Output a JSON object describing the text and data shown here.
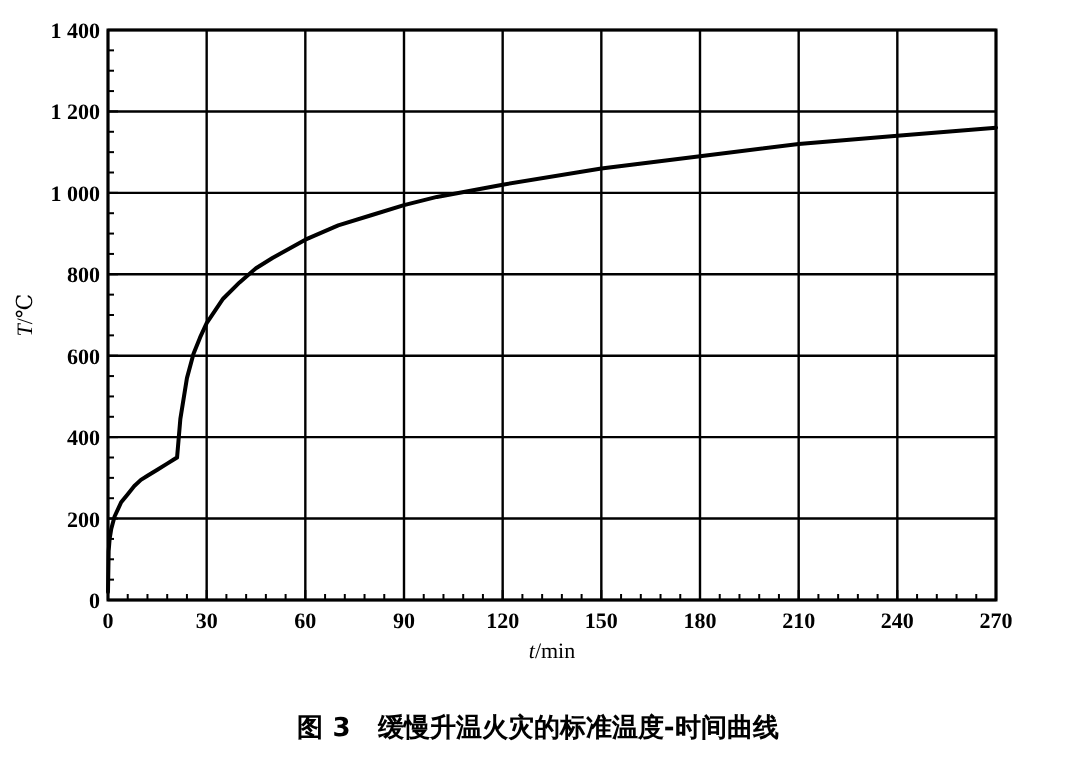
{
  "chart_data": {
    "type": "line",
    "title": "图 3   缓慢升温火灾的标准温度-时间曲线",
    "xlabel": "t/min",
    "ylabel": "T/℃",
    "xlim": [
      0,
      270
    ],
    "ylim": [
      0,
      1400
    ],
    "xticks": [
      0,
      {
        "value": 6,
        "label": null
      },
      {
        "value": 12,
        "label": null
      },
      {
        "value": 18,
        "label": null
      },
      {
        "value": 24,
        "label": null
      },
      30,
      {
        "value": 36,
        "label": null
      },
      {
        "value": 42,
        "label": null
      },
      {
        "value": 48,
        "label": null
      },
      {
        "value": 54,
        "label": null
      },
      60,
      {
        "value": 66,
        "label": null
      },
      {
        "value": 72,
        "label": null
      },
      {
        "value": 78,
        "label": null
      },
      {
        "value": 84,
        "label": null
      },
      90,
      {
        "value": 96,
        "label": null
      },
      {
        "value": 102,
        "label": null
      },
      {
        "value": 108,
        "label": null
      },
      {
        "value": 114,
        "label": null
      },
      120,
      {
        "value": 126,
        "label": null
      },
      {
        "value": 132,
        "label": null
      },
      {
        "value": 138,
        "label": null
      },
      {
        "value": 144,
        "label": null
      },
      150,
      {
        "value": 156,
        "label": null
      },
      {
        "value": 162,
        "label": null
      },
      {
        "value": 168,
        "label": null
      },
      {
        "value": 174,
        "label": null
      },
      180,
      {
        "value": 186,
        "label": null
      },
      {
        "value": 192,
        "label": null
      },
      {
        "value": 198,
        "label": null
      },
      {
        "value": 204,
        "label": null
      },
      210,
      {
        "value": 216,
        "label": null
      },
      {
        "value": 222,
        "label": null
      },
      {
        "value": 228,
        "label": null
      },
      {
        "value": 234,
        "label": null
      },
      240,
      {
        "value": 246,
        "label": null
      },
      {
        "value": 252,
        "label": null
      },
      {
        "value": 258,
        "label": null
      },
      {
        "value": 264,
        "label": null
      },
      270
    ],
    "yticks": [
      0,
      {
        "value": 50,
        "label": null
      },
      {
        "value": 100,
        "label": null
      },
      {
        "value": 150,
        "label": null
      },
      200,
      {
        "value": 250,
        "label": null
      },
      {
        "value": 300,
        "label": null
      },
      {
        "value": 350,
        "label": null
      },
      400,
      {
        "value": 450,
        "label": null
      },
      {
        "value": 500,
        "label": null
      },
      {
        "value": 550,
        "label": null
      },
      600,
      {
        "value": 650,
        "label": null
      },
      {
        "value": 700,
        "label": null
      },
      {
        "value": 750,
        "label": null
      },
      800,
      {
        "value": 850,
        "label": null
      },
      {
        "value": 900,
        "label": null
      },
      {
        "value": 950,
        "label": null
      },
      {
        "value": 1000,
        "label": "1 000"
      },
      {
        "value": 1050,
        "label": null
      },
      {
        "value": 1100,
        "label": null
      },
      {
        "value": 1150,
        "label": null
      },
      {
        "value": 1200,
        "label": "1 200"
      },
      {
        "value": 1250,
        "label": null
      },
      {
        "value": 1300,
        "label": null
      },
      {
        "value": 1350,
        "label": null
      },
      {
        "value": 1400,
        "label": "1 400"
      }
    ],
    "grid": true,
    "marker": "none",
    "line_style": "solid",
    "series": [
      {
        "color": "#000000",
        "x": [
          0,
          0.2,
          0.5,
          1,
          2,
          4,
          6,
          8,
          10,
          12,
          15,
          18,
          20,
          21,
          22,
          24,
          26,
          28,
          30,
          35,
          40,
          45,
          50,
          60,
          70,
          80,
          90,
          100,
          120,
          150,
          180,
          210,
          240,
          270
        ],
        "values": [
          20,
          120,
          150,
          175,
          205,
          240,
          260,
          280,
          295,
          305,
          320,
          335,
          345,
          350,
          445,
          545,
          605,
          645,
          680,
          740,
          780,
          815,
          840,
          885,
          920,
          945,
          970,
          990,
          1020,
          1060,
          1090,
          1120,
          1140,
          1160
        ]
      }
    ]
  }
}
